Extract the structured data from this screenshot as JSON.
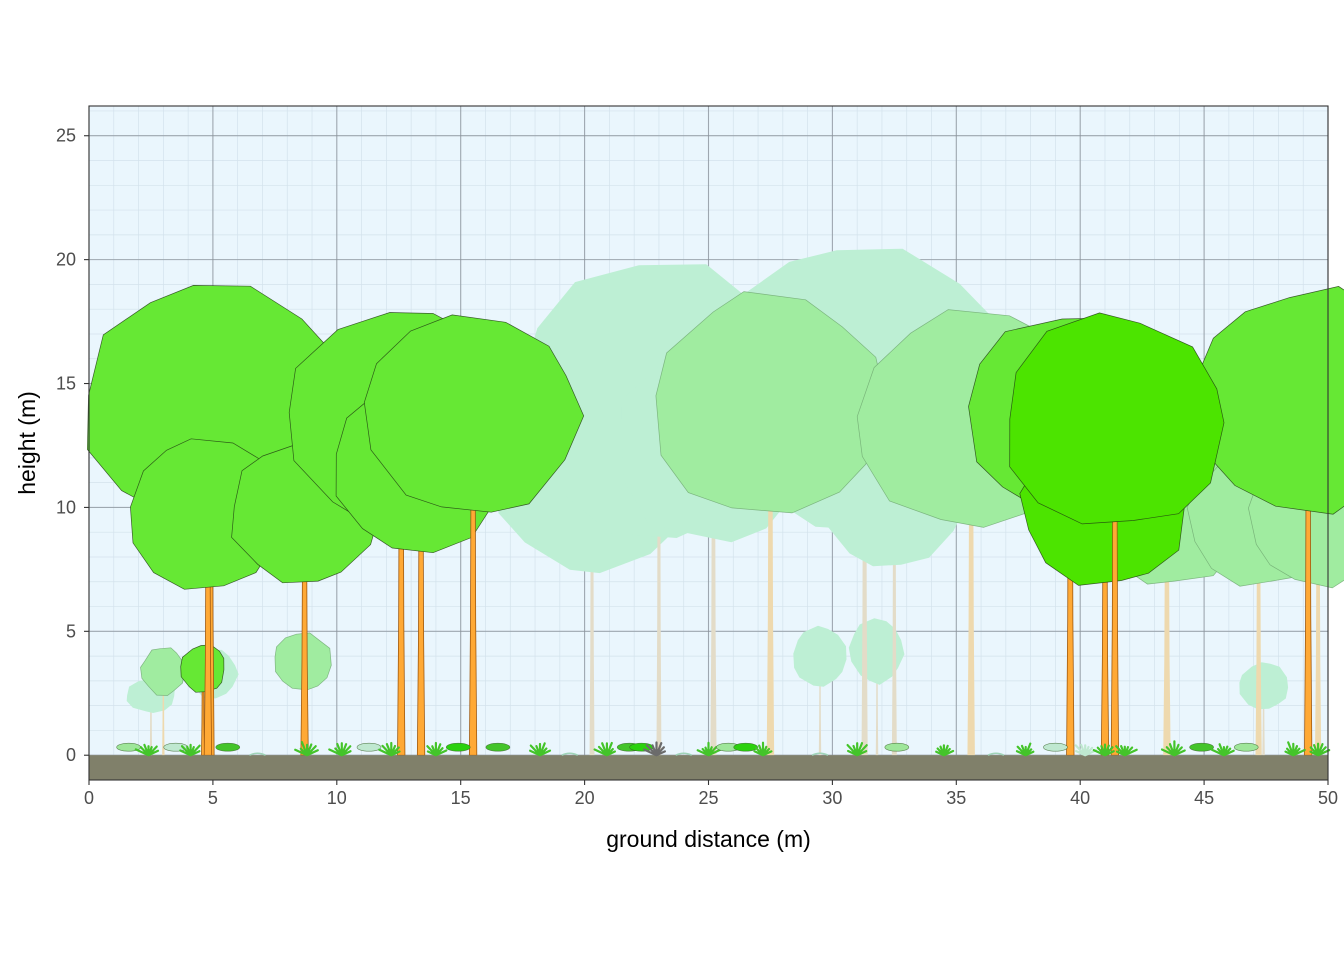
{
  "chart_data": {
    "type": "scatter",
    "xlabel": "ground distance (m)",
    "ylabel": "height (m)",
    "xlim": [
      0,
      50
    ],
    "ylim": [
      -1,
      26.2
    ],
    "x_ticks": [
      "0",
      "5",
      "10",
      "15",
      "20",
      "25",
      "30",
      "35",
      "40",
      "45",
      "50"
    ],
    "y_ticks": [
      "0",
      "5",
      "10",
      "15",
      "20",
      "25"
    ],
    "x_tick_values": [
      0,
      5,
      10,
      15,
      20,
      25,
      30,
      35,
      40,
      45,
      50
    ],
    "y_tick_values": [
      0,
      5,
      10,
      15,
      20,
      25
    ],
    "grid": true,
    "legend": "none",
    "colors": {
      "panel_background": "#EAF6FD",
      "grid_major": "#8A9299",
      "grid_minor": "#D3E2EC",
      "ground": "#80806A",
      "foreground_crown": "#66E834",
      "bright_crown": "#4CE400",
      "mid_crown": "#A0ECA0",
      "background_crown": "#BDEFD4",
      "foreground_stem": "#FFA935",
      "background_stem": "#EED9AE",
      "far_stem": "#E3DCC8"
    },
    "trees": [
      {
        "x": 2.5,
        "height": 3.4,
        "crown_base": 2.0,
        "crown_radius": 1.0,
        "layer": "background",
        "stem_width": 0.08
      },
      {
        "x": 3.0,
        "height": 4.3,
        "crown_base": 2.3,
        "crown_radius": 0.9,
        "layer": "mid",
        "stem_width": 0.08
      },
      {
        "x": 5.0,
        "height": 4.3,
        "crown_base": 2.2,
        "crown_radius": 1.0,
        "layer": "background",
        "stem_width": 0.08
      },
      {
        "x": 4.6,
        "height": 4.4,
        "crown_base": 2.4,
        "crown_radius": 0.9,
        "layer": "foreground",
        "stem_width": 0.12
      },
      {
        "x": 8.6,
        "height": 5.0,
        "crown_base": 2.6,
        "crown_radius": 1.2,
        "layer": "mid",
        "stem_width": 0.12
      },
      {
        "x": 29.5,
        "height": 5.1,
        "crown_base": 2.6,
        "crown_radius": 1.1,
        "layer": "background",
        "stem_width": 0.08
      },
      {
        "x": 31.8,
        "height": 5.3,
        "crown_base": 2.6,
        "crown_radius": 1.1,
        "layer": "background",
        "stem_width": 0.1
      },
      {
        "x": 47.4,
        "height": 3.8,
        "crown_base": 1.8,
        "crown_radius": 1.0,
        "layer": "background",
        "stem_width": 0.1
      },
      {
        "x": 20.3,
        "height": 15.0,
        "crown_base": 7.2,
        "crown_radius": 3.9,
        "layer": "background",
        "stem_width": 0.2
      },
      {
        "x": 23.0,
        "height": 20.2,
        "crown_base": 8.5,
        "crown_radius": 5.8,
        "layer": "background",
        "stem_width": 0.2
      },
      {
        "x": 25.2,
        "height": 16.5,
        "crown_base": 8.5,
        "crown_radius": 4.0,
        "layer": "background",
        "stem_width": 0.25
      },
      {
        "x": 31.3,
        "height": 21.0,
        "crown_base": 9.0,
        "crown_radius": 6.0,
        "layer": "background",
        "stem_width": 0.25
      },
      {
        "x": 32.5,
        "height": 13.0,
        "crown_base": 7.5,
        "crown_radius": 2.8,
        "layer": "background",
        "stem_width": 0.2
      },
      {
        "x": 27.5,
        "height": 18.8,
        "crown_base": 9.4,
        "crown_radius": 4.7,
        "layer": "mid",
        "stem_width": 0.3
      },
      {
        "x": 35.6,
        "height": 18.1,
        "crown_base": 9.0,
        "crown_radius": 4.6,
        "layer": "mid",
        "stem_width": 0.3
      },
      {
        "x": 43.5,
        "height": 13.5,
        "crown_base": 6.8,
        "crown_radius": 3.4,
        "layer": "mid",
        "stem_width": 0.3
      },
      {
        "x": 47.2,
        "height": 12.5,
        "crown_base": 6.7,
        "crown_radius": 2.9,
        "layer": "mid",
        "stem_width": 0.25
      },
      {
        "x": 49.6,
        "height": 12.5,
        "crown_base": 6.8,
        "crown_radius": 2.9,
        "layer": "mid",
        "stem_width": 0.25
      },
      {
        "x": 4.9,
        "height": 19.4,
        "crown_base": 9.1,
        "crown_radius": 5.2,
        "layer": "foreground",
        "stem_width": 0.3
      },
      {
        "x": 4.8,
        "height": 13.0,
        "crown_base": 6.6,
        "crown_radius": 3.2,
        "layer": "foreground",
        "stem_width": 0.3
      },
      {
        "x": 8.7,
        "height": 12.8,
        "crown_base": 6.8,
        "crown_radius": 3.0,
        "layer": "foreground",
        "stem_width": 0.3
      },
      {
        "x": 12.6,
        "height": 18.1,
        "crown_base": 9.0,
        "crown_radius": 4.6,
        "layer": "foreground",
        "stem_width": 0.3
      },
      {
        "x": 13.4,
        "height": 15.3,
        "crown_base": 8.2,
        "crown_radius": 3.6,
        "layer": "foreground",
        "stem_width": 0.3
      },
      {
        "x": 15.5,
        "height": 18.0,
        "crown_base": 9.4,
        "crown_radius": 4.3,
        "layer": "foreground",
        "stem_width": 0.3
      },
      {
        "x": 39.6,
        "height": 17.9,
        "crown_base": 9.4,
        "crown_radius": 4.3,
        "layer": "foreground",
        "stem_width": 0.3
      },
      {
        "x": 41.0,
        "height": 13.5,
        "crown_base": 6.8,
        "crown_radius": 3.4,
        "layer": "bright",
        "stem_width": 0.3
      },
      {
        "x": 41.4,
        "height": 18.0,
        "crown_base": 9.0,
        "crown_radius": 4.5,
        "layer": "bright",
        "stem_width": 0.3
      },
      {
        "x": 49.2,
        "height": 19.0,
        "crown_base": 9.6,
        "crown_radius": 4.7,
        "layer": "foreground",
        "stem_width": 0.3
      }
    ],
    "understory": [
      {
        "x": 1.6,
        "kind": "ellipse",
        "layer": "mid"
      },
      {
        "x": 2.4,
        "kind": "fern",
        "layer": "foreground"
      },
      {
        "x": 3.5,
        "kind": "ellipse",
        "layer": "background"
      },
      {
        "x": 4.1,
        "kind": "fern",
        "layer": "foreground"
      },
      {
        "x": 5.6,
        "kind": "ellipse",
        "layer": "foreground"
      },
      {
        "x": 6.8,
        "kind": "grass",
        "layer": "background"
      },
      {
        "x": 8.8,
        "kind": "fern",
        "layer": "foreground"
      },
      {
        "x": 10.2,
        "kind": "fern",
        "layer": "foreground"
      },
      {
        "x": 11.3,
        "kind": "ellipse",
        "layer": "background"
      },
      {
        "x": 12.2,
        "kind": "fern",
        "layer": "foreground"
      },
      {
        "x": 14.0,
        "kind": "fern",
        "layer": "foreground"
      },
      {
        "x": 14.9,
        "kind": "ellipse",
        "layer": "bright"
      },
      {
        "x": 16.5,
        "kind": "ellipse",
        "layer": "foreground"
      },
      {
        "x": 18.2,
        "kind": "fern",
        "layer": "foreground"
      },
      {
        "x": 19.4,
        "kind": "grass",
        "layer": "background"
      },
      {
        "x": 20.9,
        "kind": "fern",
        "layer": "foreground"
      },
      {
        "x": 21.8,
        "kind": "ellipse",
        "layer": "foreground"
      },
      {
        "x": 22.3,
        "kind": "ellipse",
        "layer": "bright"
      },
      {
        "x": 22.9,
        "kind": "fern",
        "layer": "dark"
      },
      {
        "x": 24.0,
        "kind": "grass",
        "layer": "background"
      },
      {
        "x": 25.0,
        "kind": "fern",
        "layer": "foreground"
      },
      {
        "x": 25.8,
        "kind": "ellipse",
        "layer": "mid"
      },
      {
        "x": 26.5,
        "kind": "ellipse",
        "layer": "bright"
      },
      {
        "x": 27.2,
        "kind": "fern",
        "layer": "foreground"
      },
      {
        "x": 29.5,
        "kind": "grass",
        "layer": "background"
      },
      {
        "x": 31.0,
        "kind": "fern",
        "layer": "foreground"
      },
      {
        "x": 32.6,
        "kind": "ellipse",
        "layer": "mid"
      },
      {
        "x": 34.5,
        "kind": "fern",
        "layer": "foreground"
      },
      {
        "x": 36.6,
        "kind": "grass",
        "layer": "background"
      },
      {
        "x": 37.8,
        "kind": "fern",
        "layer": "foreground"
      },
      {
        "x": 39.0,
        "kind": "ellipse",
        "layer": "background"
      },
      {
        "x": 40.2,
        "kind": "fern",
        "layer": "background"
      },
      {
        "x": 41.0,
        "kind": "fern",
        "layer": "foreground"
      },
      {
        "x": 41.8,
        "kind": "fern",
        "layer": "foreground"
      },
      {
        "x": 43.8,
        "kind": "fern",
        "layer": "foreground"
      },
      {
        "x": 44.9,
        "kind": "ellipse",
        "layer": "foreground"
      },
      {
        "x": 45.8,
        "kind": "fern",
        "layer": "foreground"
      },
      {
        "x": 46.7,
        "kind": "ellipse",
        "layer": "mid"
      },
      {
        "x": 48.6,
        "kind": "fern",
        "layer": "foreground"
      },
      {
        "x": 49.6,
        "kind": "fern",
        "layer": "foreground"
      }
    ]
  }
}
